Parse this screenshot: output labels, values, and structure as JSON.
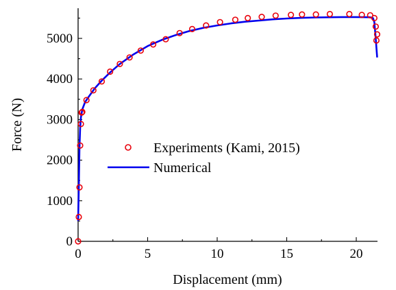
{
  "chart_data": {
    "type": "scatter",
    "title": "",
    "xlabel": "Displacement (mm)",
    "ylabel": "Force (N)",
    "xlim": [
      0,
      22
    ],
    "ylim": [
      0,
      5700
    ],
    "x_ticks": [
      0,
      5,
      10,
      15,
      20
    ],
    "y_ticks": [
      0,
      1000,
      2000,
      3000,
      4000,
      5000
    ],
    "grid": false,
    "legend_position": "center",
    "series": [
      {
        "name": "Experiments (Kami, 2015)",
        "kind": "scatter",
        "marker": "open-circle",
        "color": "#e8000b",
        "x": [
          0.0,
          0.05,
          0.1,
          0.15,
          0.2,
          0.25,
          0.3,
          0.6,
          1.1,
          1.7,
          2.3,
          3.0,
          3.7,
          4.5,
          5.4,
          6.3,
          7.3,
          8.2,
          9.2,
          10.2,
          11.3,
          12.2,
          13.2,
          14.2,
          15.3,
          16.1,
          17.1,
          18.1,
          19.5,
          20.4,
          21.0,
          21.3,
          21.4,
          21.5,
          21.45
        ],
        "y": [
          0,
          600,
          1330,
          2360,
          2890,
          3170,
          3190,
          3480,
          3720,
          3940,
          4180,
          4370,
          4530,
          4700,
          4850,
          4980,
          5130,
          5230,
          5320,
          5400,
          5460,
          5500,
          5530,
          5560,
          5580,
          5590,
          5590,
          5600,
          5600,
          5580,
          5570,
          5500,
          5290,
          5100,
          4950
        ]
      },
      {
        "name": "Numerical",
        "kind": "line",
        "color": "#0000ee",
        "x": [
          0.0,
          0.05,
          0.1,
          0.15,
          0.2,
          0.3,
          0.5,
          0.8,
          1.2,
          1.7,
          2.3,
          3.0,
          4.0,
          5.0,
          6.0,
          7.0,
          8.0,
          9.0,
          10.0,
          11.0,
          12.0,
          13.0,
          14.0,
          15.0,
          16.0,
          17.0,
          18.0,
          19.0,
          20.0,
          21.0,
          21.2,
          21.3,
          21.4,
          21.5
        ],
        "y": [
          500,
          1300,
          2300,
          2800,
          3050,
          3250,
          3430,
          3580,
          3770,
          3960,
          4160,
          4370,
          4610,
          4810,
          4960,
          5080,
          5180,
          5260,
          5320,
          5370,
          5410,
          5440,
          5470,
          5490,
          5505,
          5515,
          5520,
          5525,
          5525,
          5520,
          5500,
          5400,
          5000,
          4530
        ]
      }
    ]
  }
}
